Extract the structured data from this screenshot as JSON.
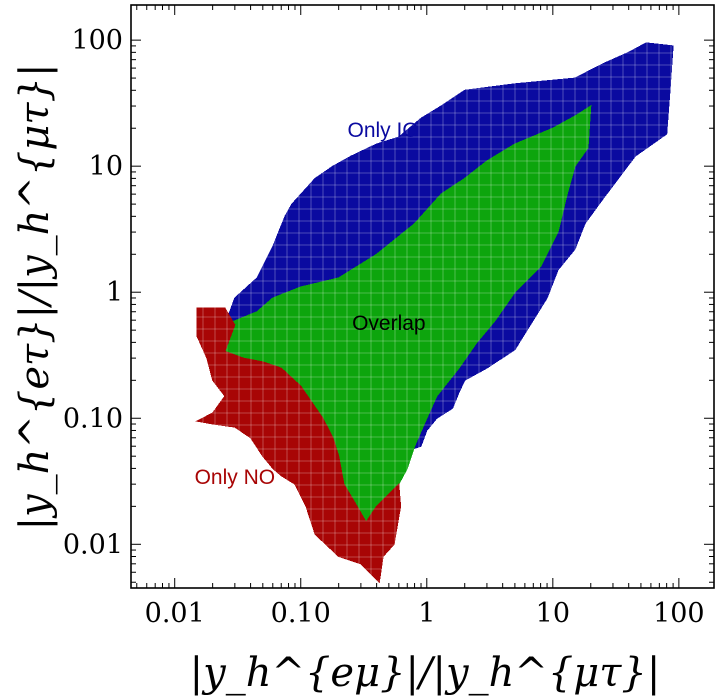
{
  "chart_data": {
    "type": "heatmap",
    "title": "",
    "xlabel": "|y_h^{eμ}|/|y_h^{μτ}|",
    "ylabel": "|y_h^{eτ}|/|y_h^{μτ}|",
    "x_scale": "log",
    "y_scale": "log",
    "xlim": [
      0.0045,
      190
    ],
    "ylim": [
      0.0045,
      190
    ],
    "grid": true,
    "x_ticks": [
      {
        "value": 0.01,
        "label": "0.01"
      },
      {
        "value": 0.1,
        "label": "0.10"
      },
      {
        "value": 1,
        "label": "1"
      },
      {
        "value": 10,
        "label": "10"
      },
      {
        "value": 100,
        "label": "100"
      }
    ],
    "y_ticks": [
      {
        "value": 0.01,
        "label": "0.01"
      },
      {
        "value": 0.1,
        "label": "0.10"
      },
      {
        "value": 1,
        "label": "1"
      },
      {
        "value": 10,
        "label": "10"
      },
      {
        "value": 100,
        "label": "100"
      }
    ],
    "colors": {
      "Only IO": "#0a0aa0",
      "Overlap": "#0da50d",
      "Only NO": "#a80505"
    },
    "regions": [
      {
        "name": "Only IO",
        "boundary": [
          [
            0.025,
            0.55
          ],
          [
            0.03,
            0.9
          ],
          [
            0.045,
            1.3
          ],
          [
            0.06,
            2.3
          ],
          [
            0.075,
            4.0
          ],
          [
            0.085,
            5.0
          ],
          [
            0.13,
            8.0
          ],
          [
            0.18,
            10.0
          ],
          [
            0.25,
            12.0
          ],
          [
            0.4,
            15.0
          ],
          [
            0.6,
            17.0
          ],
          [
            0.9,
            24.0
          ],
          [
            1.3,
            30.0
          ],
          [
            2.0,
            40.0
          ],
          [
            5.0,
            45.0
          ],
          [
            15.0,
            50.0
          ],
          [
            25.0,
            65.0
          ],
          [
            40.0,
            80.0
          ],
          [
            55.0,
            95.0
          ],
          [
            90.0,
            90.0
          ],
          [
            85.0,
            40.0
          ],
          [
            80.0,
            18.0
          ],
          [
            45.0,
            12.0
          ],
          [
            25.0,
            5.5
          ],
          [
            18.0,
            3.5
          ],
          [
            15.0,
            2.2
          ],
          [
            11.0,
            1.5
          ],
          [
            9.0,
            0.9
          ],
          [
            7.0,
            0.6
          ],
          [
            5.0,
            0.35
          ],
          [
            3.0,
            0.25
          ],
          [
            2.0,
            0.2
          ],
          [
            1.8,
            0.16
          ],
          [
            1.6,
            0.12
          ],
          [
            1.2,
            0.1
          ],
          [
            1.0,
            0.08
          ],
          [
            0.9,
            0.06
          ],
          [
            0.7,
            0.055
          ],
          [
            0.6,
            0.045
          ],
          [
            0.55,
            0.07
          ],
          [
            0.6,
            0.2
          ],
          [
            0.5,
            0.4
          ],
          [
            0.2,
            0.5
          ],
          [
            0.08,
            0.55
          ]
        ]
      },
      {
        "name": "Overlap",
        "boundary": [
          [
            0.018,
            0.34
          ],
          [
            0.02,
            0.4
          ],
          [
            0.025,
            0.55
          ],
          [
            0.045,
            0.7
          ],
          [
            0.06,
            0.9
          ],
          [
            0.1,
            1.1
          ],
          [
            0.2,
            1.3
          ],
          [
            0.4,
            2.0
          ],
          [
            0.8,
            3.5
          ],
          [
            1.3,
            6.0
          ],
          [
            2.0,
            8.0
          ],
          [
            3.0,
            11.0
          ],
          [
            5.0,
            15.0
          ],
          [
            10.0,
            20.0
          ],
          [
            15.0,
            25.0
          ],
          [
            20.0,
            30.0
          ],
          [
            19.0,
            14.0
          ],
          [
            15.0,
            10.0
          ],
          [
            13.0,
            6.0
          ],
          [
            11.0,
            3.0
          ],
          [
            8.0,
            1.6
          ],
          [
            5.0,
            1.0
          ],
          [
            3.5,
            0.6
          ],
          [
            2.5,
            0.4
          ],
          [
            1.8,
            0.25
          ],
          [
            1.2,
            0.15
          ],
          [
            1.0,
            0.1
          ],
          [
            0.8,
            0.06
          ],
          [
            0.7,
            0.04
          ],
          [
            0.6,
            0.03
          ],
          [
            0.5,
            0.025
          ],
          [
            0.4,
            0.02
          ],
          [
            0.33,
            0.015
          ],
          [
            0.28,
            0.02
          ],
          [
            0.22,
            0.03
          ],
          [
            0.2,
            0.05
          ],
          [
            0.18,
            0.07
          ],
          [
            0.15,
            0.1
          ],
          [
            0.1,
            0.18
          ],
          [
            0.07,
            0.25
          ],
          [
            0.05,
            0.28
          ],
          [
            0.035,
            0.3
          ],
          [
            0.025,
            0.33
          ]
        ]
      },
      {
        "name": "Only NO",
        "boundary": [
          [
            0.015,
            0.75
          ],
          [
            0.025,
            0.75
          ],
          [
            0.03,
            0.55
          ],
          [
            0.025,
            0.34
          ],
          [
            0.035,
            0.3
          ],
          [
            0.05,
            0.28
          ],
          [
            0.07,
            0.25
          ],
          [
            0.1,
            0.18
          ],
          [
            0.15,
            0.1
          ],
          [
            0.18,
            0.07
          ],
          [
            0.2,
            0.05
          ],
          [
            0.22,
            0.03
          ],
          [
            0.28,
            0.02
          ],
          [
            0.33,
            0.015
          ],
          [
            0.4,
            0.02
          ],
          [
            0.5,
            0.025
          ],
          [
            0.6,
            0.03
          ],
          [
            0.62,
            0.02
          ],
          [
            0.55,
            0.01
          ],
          [
            0.45,
            0.008
          ],
          [
            0.42,
            0.005
          ],
          [
            0.35,
            0.006
          ],
          [
            0.3,
            0.007
          ],
          [
            0.2,
            0.008
          ],
          [
            0.13,
            0.012
          ],
          [
            0.11,
            0.02
          ],
          [
            0.09,
            0.03
          ],
          [
            0.07,
            0.035
          ],
          [
            0.06,
            0.04
          ],
          [
            0.05,
            0.05
          ],
          [
            0.04,
            0.07
          ],
          [
            0.03,
            0.085
          ],
          [
            0.02,
            0.09
          ],
          [
            0.015,
            0.095
          ],
          [
            0.02,
            0.11
          ],
          [
            0.025,
            0.15
          ],
          [
            0.02,
            0.2
          ],
          [
            0.018,
            0.3
          ],
          [
            0.015,
            0.45
          ]
        ]
      }
    ],
    "annotations": [
      {
        "text": "Only IO",
        "x": 0.45,
        "y": 17.0,
        "color": "#0a0aa0"
      },
      {
        "text": "Overlap",
        "x": 0.5,
        "y": 0.5,
        "color": "#000000"
      },
      {
        "text": "Only NO",
        "x": 0.03,
        "y": 0.03,
        "color": "#a80505"
      }
    ]
  }
}
